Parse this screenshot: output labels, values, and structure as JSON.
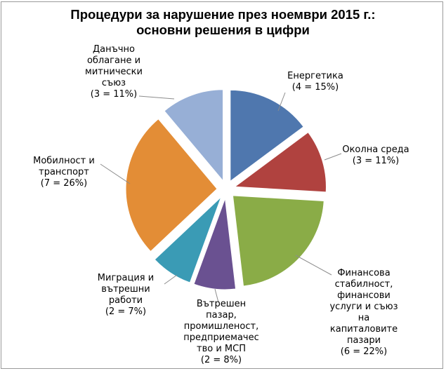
{
  "chart_data": {
    "type": "pie",
    "title": "Процедури за нарушение през ноември 2015 г.:",
    "subtitle": "основни решения в цифри",
    "slices": [
      {
        "name": "Енергетика",
        "value": 4,
        "percent": 15,
        "label": "Енергетика\n(4 = 15%)",
        "color": "#4f77ae"
      },
      {
        "name": "Околна среда",
        "value": 3,
        "percent": 11,
        "label": "Околна среда\n(3 = 11%)",
        "color": "#b0423f"
      },
      {
        "name": "Финансова стабилност, финансови услуги и съюз на капиталовите пазари",
        "value": 6,
        "percent": 22,
        "label": "Финансова\nстабилност,\nфинансови\nуслуги и съюз\nна\nкапиталовите\nпазари\n(6 = 22%)",
        "color": "#8aac47"
      },
      {
        "name": "Вътрешен пазар, промишленост, предприемачество и МСП",
        "value": 2,
        "percent": 8,
        "label": "Вътрешен\nпазар,\nпромишленост,\nпредприемачес\nтво и МСП\n(2 = 8%)",
        "color": "#6a5191"
      },
      {
        "name": "Миграция и вътрешни работи",
        "value": 2,
        "percent": 7,
        "label": "Миграция и\nвътрешни\nработи\n(2 = 7%)",
        "color": "#3a9bb5"
      },
      {
        "name": "Мобилност и транспорт",
        "value": 7,
        "percent": 26,
        "label": "Мобилност и\nтранспорт\n(7 = 26%)",
        "color": "#e38d36"
      },
      {
        "name": "Данъчно облагане и митнически съюз",
        "value": 3,
        "percent": 11,
        "label": "Данъчно\nоблагане и\nмитнически\nсъюз\n(3 = 11%)",
        "color": "#97afd6"
      }
    ],
    "legend": "none",
    "data_labels": "outside"
  }
}
